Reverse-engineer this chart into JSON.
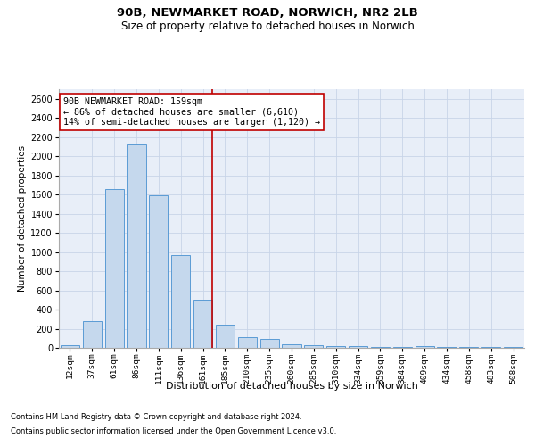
{
  "title1": "90B, NEWMARKET ROAD, NORWICH, NR2 2LB",
  "title2": "Size of property relative to detached houses in Norwich",
  "xlabel": "Distribution of detached houses by size in Norwich",
  "ylabel": "Number of detached properties",
  "categories": [
    "12sqm",
    "37sqm",
    "61sqm",
    "86sqm",
    "111sqm",
    "136sqm",
    "161sqm",
    "185sqm",
    "210sqm",
    "235sqm",
    "260sqm",
    "285sqm",
    "310sqm",
    "334sqm",
    "359sqm",
    "384sqm",
    "409sqm",
    "434sqm",
    "458sqm",
    "483sqm",
    "508sqm"
  ],
  "values": [
    30,
    280,
    1660,
    2130,
    1590,
    970,
    500,
    240,
    110,
    90,
    35,
    30,
    20,
    15,
    10,
    5,
    15,
    5,
    5,
    5,
    10
  ],
  "bar_color": "#c5d8ed",
  "bar_edge_color": "#5b9bd5",
  "bar_linewidth": 0.7,
  "vline_x": 6.42,
  "vline_color": "#c00000",
  "vline_linewidth": 1.2,
  "annotation_line1": "90B NEWMARKET ROAD: 159sqm",
  "annotation_line2": "← 86% of detached houses are smaller (6,610)",
  "annotation_line3": "14% of semi-detached houses are larger (1,120) →",
  "annotation_box_color": "#c00000",
  "annotation_bg": "white",
  "ylim": [
    0,
    2700
  ],
  "yticks": [
    0,
    200,
    400,
    600,
    800,
    1000,
    1200,
    1400,
    1600,
    1800,
    2000,
    2200,
    2400,
    2600
  ],
  "grid_color": "#c8d4e8",
  "bg_color": "#e8eef8",
  "footnote1": "Contains HM Land Registry data © Crown copyright and database right 2024.",
  "footnote2": "Contains public sector information licensed under the Open Government Licence v3.0."
}
